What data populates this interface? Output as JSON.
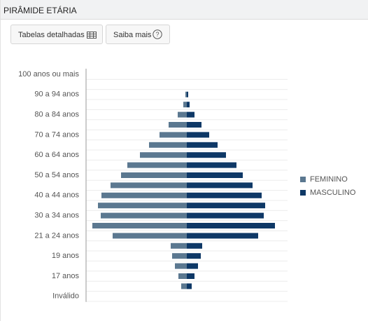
{
  "header": {
    "title": "PIRÂMIDE ETÁRIA"
  },
  "buttons": [
    {
      "label": "Tabelas detalhadas"
    },
    {
      "label": "Saiba mais"
    }
  ],
  "chart_data": {
    "type": "pyramid",
    "categories": [
      "100 anos ou mais",
      null,
      "90 a 94 anos",
      null,
      "80 a 84 anos",
      null,
      "70 a 74 anos",
      null,
      "60 a 64 anos",
      null,
      "50 a 54 anos",
      null,
      "40 a 44 anos",
      null,
      "30 a 34 anos",
      null,
      "21 a 24 anos",
      null,
      "19 anos",
      null,
      "17 anos",
      null,
      "Inválido"
    ],
    "series": [
      {
        "name": "FEMININO",
        "color": "#5b7890",
        "values": [
          0,
          0,
          2,
          5,
          13,
          26,
          39,
          54,
          67,
          85,
          94,
          109,
          122,
          127,
          123,
          135,
          106,
          23,
          21,
          17,
          12,
          8,
          0
        ]
      },
      {
        "name": "MASCULINO",
        "color": "#0e3866",
        "values": [
          0,
          0,
          2,
          4,
          11,
          21,
          32,
          44,
          56,
          71,
          80,
          94,
          107,
          112,
          110,
          126,
          102,
          22,
          20,
          16,
          11,
          7,
          0
        ]
      }
    ],
    "grid": true
  }
}
